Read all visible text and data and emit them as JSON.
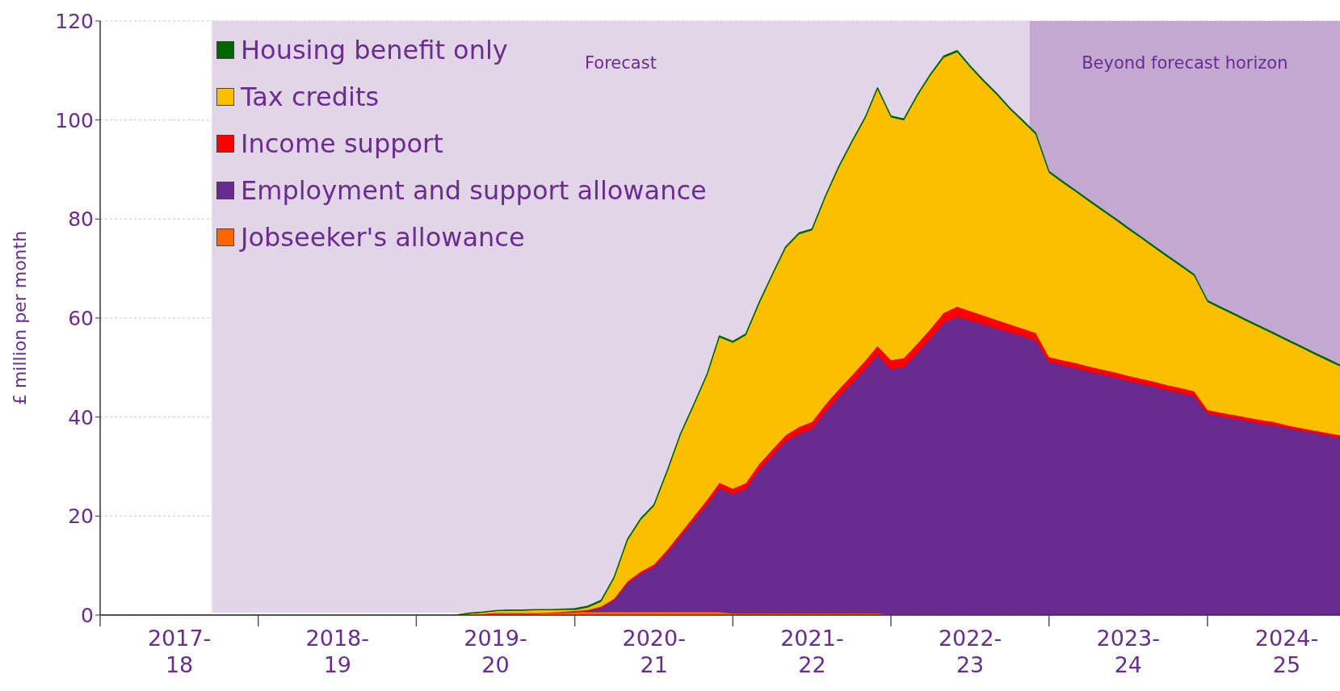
{
  "chart_data": {
    "type": "area",
    "stacked": true,
    "ylabel": "£ million per month",
    "x": [
      "2017-04",
      "2017-05",
      "2017-06",
      "2017-07",
      "2017-08",
      "2017-09",
      "2017-10",
      "2017-11",
      "2017-12",
      "2018-01",
      "2018-02",
      "2018-03",
      "2018-04",
      "2018-05",
      "2018-06",
      "2018-07",
      "2018-08",
      "2018-09",
      "2018-10",
      "2018-11",
      "2018-12",
      "2019-01",
      "2019-02",
      "2019-03",
      "2019-04",
      "2019-05",
      "2019-06",
      "2019-07",
      "2019-08",
      "2019-09",
      "2019-10",
      "2019-11",
      "2019-12",
      "2020-01",
      "2020-02",
      "2020-03",
      "2020-04",
      "2020-05",
      "2020-06",
      "2020-07",
      "2020-08",
      "2020-09",
      "2020-10",
      "2020-11",
      "2020-12",
      "2021-01",
      "2021-02",
      "2021-03",
      "2021-04",
      "2021-05",
      "2021-06",
      "2021-07",
      "2021-08",
      "2021-09",
      "2021-10",
      "2021-11",
      "2021-12",
      "2022-01",
      "2022-02",
      "2022-03",
      "2022-04",
      "2022-05",
      "2022-06",
      "2022-07",
      "2022-08",
      "2022-09",
      "2022-10",
      "2022-11",
      "2022-12",
      "2023-01",
      "2023-02",
      "2023-03",
      "2023-04",
      "2023-05",
      "2023-06",
      "2023-07",
      "2023-08",
      "2023-09",
      "2023-10",
      "2023-11",
      "2023-12",
      "2024-01",
      "2024-02",
      "2024-03",
      "2024-04",
      "2024-05",
      "2024-06",
      "2024-07",
      "2024-08",
      "2024-09",
      "2024-10",
      "2024-11",
      "2024-12",
      "2025-01",
      "2025-02"
    ],
    "series": [
      {
        "name": "Jobseeker's allowance",
        "color": "#ff6600",
        "values": [
          0,
          0,
          0,
          0,
          0,
          0,
          0,
          0,
          0,
          0,
          0,
          0,
          0,
          0,
          0,
          0,
          0,
          0,
          0,
          0,
          0,
          0,
          0,
          0,
          0,
          0,
          0,
          0,
          0.2,
          0.2,
          0.4,
          0.4,
          0.4,
          0.4,
          0.4,
          0.4,
          0.6,
          0.6,
          0.6,
          0.6,
          0.6,
          0.6,
          0.6,
          0.6,
          0.6,
          0.6,
          0.6,
          0.6,
          0.3,
          0.3,
          0.3,
          0.3,
          0.3,
          0.3,
          0.3,
          0.3,
          0.3,
          0.3,
          0.3,
          0.3,
          0.1,
          0.1,
          0.1,
          0.1,
          0.1,
          0.1,
          0.1,
          0.1,
          0.1,
          0.1,
          0.1,
          0.1,
          0,
          0,
          0,
          0,
          0,
          0,
          0,
          0,
          0,
          0,
          0,
          0,
          0,
          0,
          0,
          0,
          0,
          0,
          0,
          0,
          0,
          0,
          0
        ]
      },
      {
        "name": "Employment and support allowance",
        "color": "#682a8f",
        "values": [
          0,
          0,
          0,
          0,
          0,
          0,
          0,
          0,
          0,
          0,
          0,
          0,
          0,
          0,
          0,
          0,
          0,
          0,
          0,
          0,
          0,
          0,
          0,
          0,
          0,
          0,
          0,
          0,
          0,
          0,
          0,
          0,
          0,
          0,
          0.1,
          0.2,
          0.1,
          0.3,
          0.9,
          2.4,
          5.8,
          7.7,
          9.1,
          12.0,
          15.2,
          18.5,
          21.7,
          25.0,
          24.1,
          25.1,
          29.0,
          31.8,
          34.7,
          36.3,
          37.3,
          40.8,
          43.7,
          46.5,
          49.4,
          52.2,
          49.6,
          50.0,
          52.8,
          55.7,
          58.9,
          60.2,
          59.4,
          58.6,
          57.8,
          57.0,
          56.2,
          55.4,
          51.1,
          50.5,
          49.9,
          49.2,
          48.6,
          48.0,
          47.3,
          46.7,
          46.1,
          45.4,
          44.8,
          44.2,
          40.7,
          40.2,
          39.7,
          39.2,
          38.7,
          38.3,
          37.8,
          37.3,
          36.8,
          36.3,
          35.8
        ]
      },
      {
        "name": "Income support",
        "color": "#ff0000",
        "values": [
          0,
          0,
          0,
          0,
          0,
          0,
          0,
          0,
          0,
          0,
          0,
          0,
          0,
          0,
          0,
          0,
          0,
          0,
          0,
          0,
          0,
          0,
          0,
          0,
          0,
          0,
          0,
          0,
          0,
          0,
          0,
          0,
          0,
          0,
          0,
          0,
          0.1,
          0.1,
          0.2,
          0.3,
          0.4,
          0.5,
          0.5,
          0.6,
          0.7,
          0.8,
          1.0,
          1.1,
          1.1,
          1.2,
          1.2,
          1.3,
          1.3,
          1.4,
          1.4,
          1.4,
          1.5,
          1.6,
          1.7,
          1.8,
          1.8,
          1.8,
          1.9,
          1.9,
          2.0,
          2.0,
          1.9,
          1.8,
          1.7,
          1.6,
          1.5,
          1.5,
          1.0,
          1.0,
          1.0,
          1.0,
          1.0,
          1.0,
          1.0,
          1.0,
          1.0,
          1.0,
          1.0,
          1.0,
          0.7,
          0.7,
          0.7,
          0.7,
          0.7,
          0.7,
          0.5,
          0.5,
          0.5,
          0.5,
          0.5
        ]
      },
      {
        "name": "Tax credits",
        "color": "#fbbf00",
        "values": [
          0,
          0,
          0,
          0,
          0,
          0,
          0,
          0,
          0,
          0,
          0,
          0,
          0,
          0,
          0,
          0,
          0,
          0,
          0,
          0,
          0,
          0,
          0,
          0,
          0,
          0,
          0,
          0,
          0.1,
          0.3,
          0.4,
          0.5,
          0.5,
          0.6,
          0.5,
          0.5,
          0.2,
          0.5,
          1.0,
          4.1,
          8.3,
          10.5,
          11.8,
          15.8,
          19.8,
          22.4,
          25.2,
          29.4,
          29.5,
          29.9,
          32.4,
          35.1,
          37.8,
          38.9,
          38.7,
          41.9,
          44.7,
          47.0,
          48.9,
          51.9,
          49.0,
          48.0,
          50.0,
          51.2,
          51.6,
          51.4,
          49.2,
          47.2,
          45.5,
          43.4,
          41.7,
          40.1,
          37.2,
          35.9,
          34.6,
          33.4,
          32.1,
          30.8,
          29.6,
          28.3,
          27.0,
          25.8,
          24.5,
          23.3,
          21.8,
          21.0,
          20.2,
          19.4,
          18.6,
          17.7,
          17.1,
          16.3,
          15.5,
          14.7,
          13.9
        ]
      },
      {
        "name": "Housing benefit only",
        "color": "#006600",
        "values": [
          0,
          0,
          0,
          0,
          0,
          0,
          0,
          0,
          0,
          0,
          0,
          0,
          0,
          0,
          0,
          0,
          0,
          0,
          0,
          0,
          0,
          0,
          0,
          0,
          0,
          0,
          0,
          0,
          0.1,
          0.1,
          0.1,
          0.1,
          0.1,
          0.1,
          0.1,
          0.1,
          0.3,
          0.3,
          0.3,
          0.3,
          0.3,
          0.3,
          0.3,
          0.3,
          0.3,
          0.3,
          0.3,
          0.3,
          0.3,
          0.3,
          0.3,
          0.3,
          0.3,
          0.3,
          0.3,
          0.3,
          0.3,
          0.3,
          0.3,
          0.3,
          0.3,
          0.3,
          0.3,
          0.3,
          0.3,
          0.3,
          0.3,
          0.3,
          0.3,
          0.3,
          0.3,
          0.3,
          0.3,
          0.3,
          0.3,
          0.3,
          0.3,
          0.3,
          0.3,
          0.3,
          0.3,
          0.3,
          0.3,
          0.3,
          0.3,
          0.3,
          0.3,
          0.3,
          0.3,
          0.3,
          0.3,
          0.3,
          0.3,
          0.3,
          0.3
        ]
      }
    ],
    "xlim": [
      "2017-04",
      "2025-02"
    ],
    "xticks": [
      {
        "value": "2017-04",
        "label": null
      },
      {
        "value": "2017-10",
        "label": "2017-18"
      },
      {
        "value": "2018-04",
        "label": null
      },
      {
        "value": "2018-10",
        "label": "2018-19"
      },
      {
        "value": "2019-04",
        "label": null
      },
      {
        "value": "2019-10",
        "label": "2019-20"
      },
      {
        "value": "2020-04",
        "label": null
      },
      {
        "value": "2020-10",
        "label": "2020-21"
      },
      {
        "value": "2021-04",
        "label": null
      },
      {
        "value": "2021-10",
        "label": "2021-22"
      },
      {
        "value": "2022-04",
        "label": null
      },
      {
        "value": "2022-10",
        "label": "2022-23"
      },
      {
        "value": "2023-04",
        "label": null
      },
      {
        "value": "2023-10",
        "label": "2023-24"
      },
      {
        "value": "2024-04",
        "label": null
      },
      {
        "value": "2024-10",
        "label": "2024-25"
      }
    ],
    "ylim": [
      0,
      120
    ],
    "yticks": [
      0,
      20,
      40,
      60,
      80,
      100,
      120
    ],
    "bands": [
      {
        "axis": "x",
        "from": "2017-12-15",
        "to": "2023-02-15",
        "label": "Forecast",
        "color": "#e1d5e7"
      },
      {
        "axis": "x",
        "from": "2023-02-15",
        "to": "2025-02",
        "label": "Beyond forecast horizon",
        "color": "#c3a9d1"
      }
    ],
    "grid": "y",
    "legend": "top left"
  }
}
